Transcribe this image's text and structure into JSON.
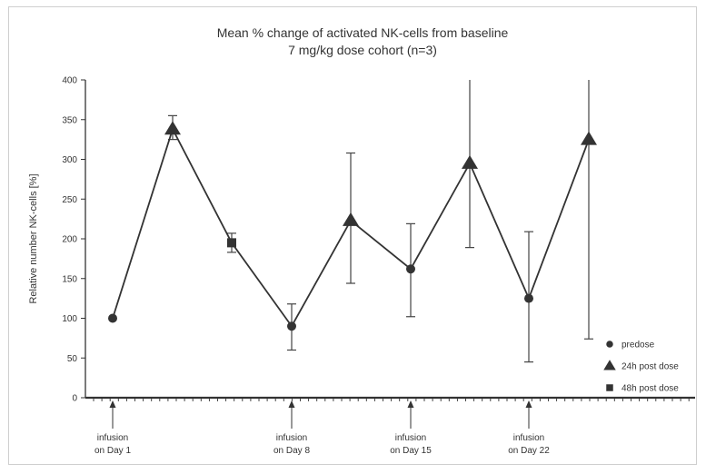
{
  "chart_data": {
    "type": "line",
    "title": "Mean % change of activated NK-cells from baseline",
    "subtitle": "7 mg/kg dose cohort (n=3)",
    "xlabel": "",
    "ylabel": "Relative number NK-cells [%]",
    "ylim": [
      0,
      400
    ],
    "yticks": [
      "0",
      "50",
      "100",
      "150",
      "200",
      "250",
      "300",
      "350",
      "400"
    ],
    "grid": false,
    "legend_position": "bottom-right",
    "legend": [
      {
        "name": "predose",
        "marker": "circle"
      },
      {
        "name": "24h post dose",
        "marker": "triangle"
      },
      {
        "name": "48h post dose",
        "marker": "square"
      }
    ],
    "points": [
      {
        "x": 1,
        "y": 100,
        "marker": "circle",
        "err_low": 100,
        "err_high": 100
      },
      {
        "x": 2,
        "y": 338,
        "marker": "triangle",
        "err_low": 325,
        "err_high": 355
      },
      {
        "x": 3,
        "y": 195,
        "marker": "square",
        "err_low": 183,
        "err_high": 207
      },
      {
        "x": 4,
        "y": 90,
        "marker": "circle",
        "err_low": 60,
        "err_high": 118
      },
      {
        "x": 5,
        "y": 223,
        "marker": "triangle",
        "err_low": 144,
        "err_high": 308
      },
      {
        "x": 6,
        "y": 162,
        "marker": "circle",
        "err_low": 102,
        "err_high": 219
      },
      {
        "x": 7,
        "y": 295,
        "marker": "triangle",
        "err_low": 189,
        "err_high": 400
      },
      {
        "x": 8,
        "y": 125,
        "marker": "circle",
        "err_low": 45,
        "err_high": 209
      },
      {
        "x": 9,
        "y": 325,
        "marker": "triangle",
        "err_low": 74,
        "err_high": 400
      }
    ],
    "annotations": [
      {
        "x": 1,
        "line1": "infusion",
        "line2": "on Day 1"
      },
      {
        "x": 4,
        "line1": "infusion",
        "line2": "on Day 8"
      },
      {
        "x": 6,
        "line1": "infusion",
        "line2": "on Day 15"
      },
      {
        "x": 8,
        "line1": "infusion",
        "line2": "on Day 22"
      }
    ]
  }
}
